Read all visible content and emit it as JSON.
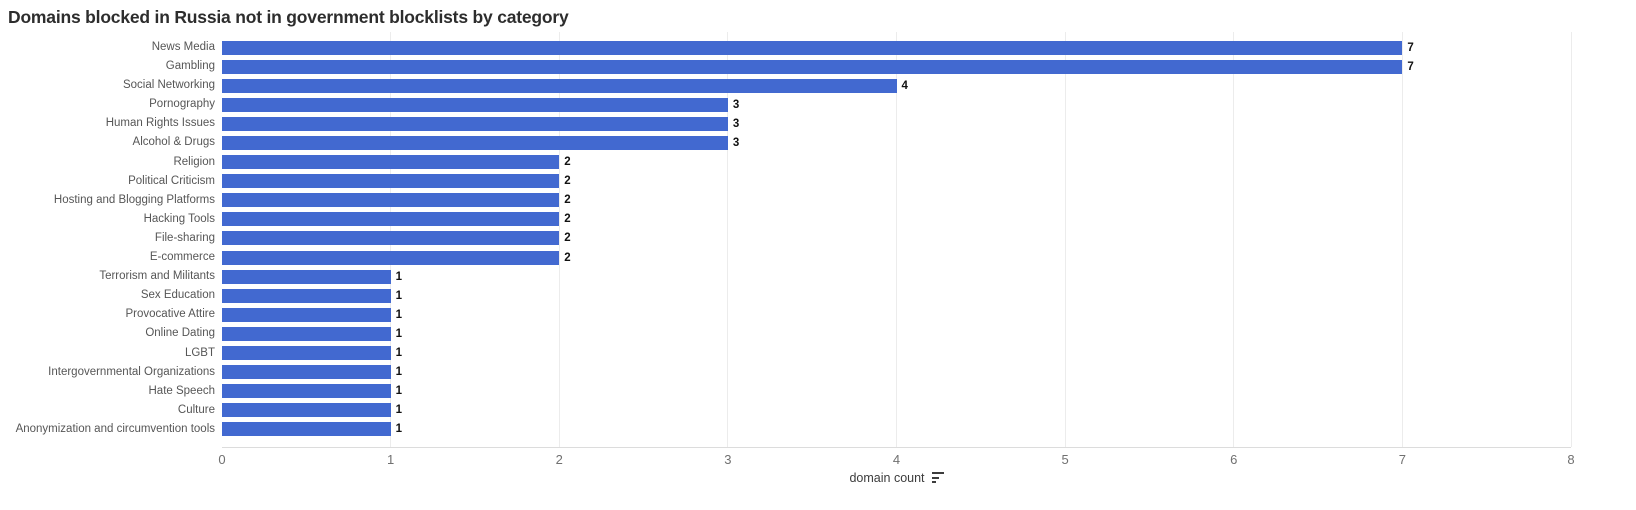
{
  "title": "Domains blocked in Russia not in government blocklists by category",
  "colors": {
    "bar": "#4269d0",
    "title": "#2d2d2d",
    "category_label": "#565656",
    "tick_label": "#707070",
    "value_label": "#111111",
    "gridline": "#ececec",
    "axis_line": "#dcdcdc",
    "axis_title": "#3c3c3c"
  },
  "x_axis": {
    "label": "domain count",
    "ticks": [
      0,
      1,
      2,
      3,
      4,
      5,
      6,
      7,
      8
    ],
    "min": 0,
    "max": 8,
    "sort_icon": "sort-descending-icon"
  },
  "chart_data": {
    "type": "bar",
    "orientation": "horizontal",
    "title": "Domains blocked in Russia not in government blocklists by category",
    "xlabel": "domain count",
    "ylabel": "",
    "xlim": [
      0,
      8
    ],
    "grid": true,
    "legend": false,
    "categories": [
      "News Media",
      "Gambling",
      "Social Networking",
      "Pornography",
      "Human Rights Issues",
      "Alcohol & Drugs",
      "Religion",
      "Political Criticism",
      "Hosting and Blogging Platforms",
      "Hacking Tools",
      "File-sharing",
      "E-commerce",
      "Terrorism and Militants",
      "Sex Education",
      "Provocative Attire",
      "Online Dating",
      "LGBT",
      "Intergovernmental Organizations",
      "Hate Speech",
      "Culture",
      "Anonymization and circumvention tools"
    ],
    "values": [
      7,
      7,
      4,
      3,
      3,
      3,
      2,
      2,
      2,
      2,
      2,
      2,
      1,
      1,
      1,
      1,
      1,
      1,
      1,
      1,
      1
    ]
  }
}
